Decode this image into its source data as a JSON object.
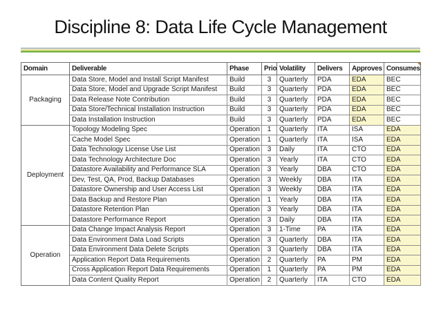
{
  "title": "Discipline 8: Data Life Cycle Management",
  "colors": {
    "highlight": "#fbf7cc",
    "separator_green": "#6faf44",
    "separator_yellow_green": "#ccd45e",
    "separator_cream": "#ece9c4",
    "separator_gray_blue": "#9eb4bd",
    "comment_marker": "#cf7a2a"
  },
  "icons": {
    "comment_marker": "corner-triangle"
  },
  "table": {
    "columns": [
      "Domain",
      "Deliverable",
      "Phase",
      "Prio",
      "Volatility",
      "Delivers",
      "Approves",
      "Consumes"
    ],
    "groups": [
      {
        "domain": "Packaging",
        "rows": [
          {
            "deliverable": "Data Store, Model and Install Script Manifest",
            "phase": "Build",
            "prio": "3",
            "volatility": "Quarterly",
            "delivers": "PDA",
            "approves": "EDA",
            "consumes": "BEC",
            "highlight": "approves"
          },
          {
            "deliverable": "Data Store, Model and Upgrade Script Manifest",
            "phase": "Build",
            "prio": "3",
            "volatility": "Quarterly",
            "delivers": "PDA",
            "approves": "EDA",
            "consumes": "BEC",
            "highlight": "approves"
          },
          {
            "deliverable": "Data Release Note Contribution",
            "phase": "Build",
            "prio": "3",
            "volatility": "Quarterly",
            "delivers": "PDA",
            "approves": "EDA",
            "consumes": "BEC",
            "highlight": "approves"
          },
          {
            "deliverable": "Data Store/Technical Installation Instruction",
            "phase": "Build",
            "prio": "3",
            "volatility": "Quarterly",
            "delivers": "PDA",
            "approves": "EDA",
            "consumes": "BEC",
            "highlight": "approves"
          },
          {
            "deliverable": "Data Installation Instruction",
            "phase": "Build",
            "prio": "3",
            "volatility": "Quarterly",
            "delivers": "PDA",
            "approves": "EDA",
            "consumes": "BEC",
            "highlight": "approves"
          }
        ]
      },
      {
        "domain": "Deployment",
        "rows": [
          {
            "deliverable": "Topology Modeling Spec",
            "phase": "Operation",
            "prio": "1",
            "volatility": "Quarterly",
            "delivers": "ITA",
            "approves": "ISA",
            "consumes": "EDA",
            "highlight": "consumes"
          },
          {
            "deliverable": "Cache Model Spec",
            "phase": "Operation",
            "prio": "1",
            "volatility": "Quarterly",
            "delivers": "ITA",
            "approves": "ISA",
            "consumes": "EDA",
            "highlight": "consumes"
          },
          {
            "deliverable": "Data Technology License Use List",
            "phase": "Operation",
            "prio": "3",
            "volatility": "Daily",
            "delivers": "ITA",
            "approves": "CTO",
            "consumes": "EDA",
            "highlight": "consumes"
          },
          {
            "deliverable": "Data Technology Architecture Doc",
            "phase": "Operation",
            "prio": "3",
            "volatility": "Yearly",
            "delivers": "ITA",
            "approves": "CTO",
            "consumes": "EDA",
            "highlight": "consumes"
          },
          {
            "deliverable": "Datastore Availability and Performance SLA",
            "phase": "Operation",
            "prio": "3",
            "volatility": "Yearly",
            "delivers": "DBA",
            "approves": "CTO",
            "consumes": "EDA",
            "highlight": "consumes"
          },
          {
            "deliverable": "Dev, Test, QA, Prod, Backup Databases",
            "phase": "Operation",
            "prio": "3",
            "volatility": "Weekly",
            "delivers": "DBA",
            "approves": "ITA",
            "consumes": "EDA",
            "highlight": "consumes"
          },
          {
            "deliverable": "Datastore Ownership and User Access List",
            "phase": "Operation",
            "prio": "3",
            "volatility": "Weekly",
            "delivers": "DBA",
            "approves": "ITA",
            "consumes": "EDA",
            "highlight": "consumes"
          },
          {
            "deliverable": "Data Backup and Restore Plan",
            "phase": "Operation",
            "prio": "1",
            "volatility": "Yearly",
            "delivers": "DBA",
            "approves": "ITA",
            "consumes": "EDA",
            "highlight": "consumes"
          },
          {
            "deliverable": "Datastore Retention Plan",
            "phase": "Operation",
            "prio": "3",
            "volatility": "Yearly",
            "delivers": "DBA",
            "approves": "ITA",
            "consumes": "EDA",
            "highlight": "consumes"
          },
          {
            "deliverable": "Datastore Performance Report",
            "phase": "Operation",
            "prio": "3",
            "volatility": "Daily",
            "delivers": "DBA",
            "approves": "ITA",
            "consumes": "EDA",
            "highlight": "consumes"
          }
        ]
      },
      {
        "domain": "Operation",
        "rows": [
          {
            "deliverable": "Data Change Impact Analysis Report",
            "phase": "Operation",
            "prio": "3",
            "volatility": "1-Time",
            "delivers": "PA",
            "approves": "ITA",
            "consumes": "EDA",
            "highlight": "consumes"
          },
          {
            "deliverable": "Data Environment Data Load Scripts",
            "phase": "Operation",
            "prio": "3",
            "volatility": "Quarterly",
            "delivers": "DBA",
            "approves": "ITA",
            "consumes": "EDA",
            "highlight": "consumes"
          },
          {
            "deliverable": "Data Environment Data Delete Scripts",
            "phase": "Operation",
            "prio": "3",
            "volatility": "Quarterly",
            "delivers": "DBA",
            "approves": "ITA",
            "consumes": "EDA",
            "highlight": "consumes"
          },
          {
            "deliverable": "Application Report Data Requirements",
            "phase": "Operation",
            "prio": "2",
            "volatility": "Quarterly",
            "delivers": "PA",
            "approves": "PM",
            "consumes": "EDA",
            "highlight": "consumes"
          },
          {
            "deliverable": "Cross Application Report Data Requirements",
            "phase": "Operation",
            "prio": "1",
            "volatility": "Quarterly",
            "delivers": "PA",
            "approves": "PM",
            "consumes": "EDA",
            "highlight": "consumes"
          },
          {
            "deliverable": "Data Content Quality Report",
            "phase": "Operation",
            "prio": "2",
            "volatility": "Quarterly",
            "delivers": "ITA",
            "approves": "CTO",
            "consumes": "EDA",
            "highlight": "consumes"
          }
        ]
      }
    ]
  }
}
